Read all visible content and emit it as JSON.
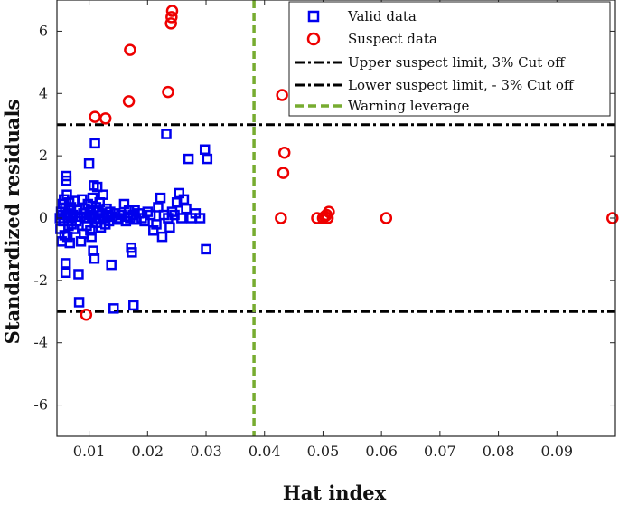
{
  "chart_data": {
    "type": "scatter",
    "xlabel": "Hat index",
    "ylabel": "Standardized residuals",
    "xlim": [
      0.0045,
      0.1
    ],
    "ylim": [
      -7,
      7
    ],
    "xticks": [
      0.01,
      0.02,
      0.03,
      0.04,
      0.05,
      0.06,
      0.07,
      0.08,
      0.09
    ],
    "xtick_labels": [
      "0.01",
      "0.02",
      "0.03",
      "0.04",
      "0.05",
      "0.06",
      "0.07",
      "0.08",
      "0.09"
    ],
    "yticks": [
      -6,
      -4,
      -2,
      0,
      2,
      4,
      6
    ],
    "ytick_labels": [
      "-6",
      "-4",
      "-2",
      "0",
      "2",
      "4",
      "6"
    ],
    "legend": {
      "position": "top-right",
      "entries": [
        {
          "label": "Valid data",
          "marker": "square",
          "color": "#0000ee"
        },
        {
          "label": "Suspect data",
          "marker": "circle",
          "color": "#ee0000"
        },
        {
          "label": "Upper suspect limit, 3% Cut off",
          "line": "dashdot",
          "color": "#000000"
        },
        {
          "label": "Lower suspect limit, - 3% Cut off",
          "line": "dashdot",
          "color": "#000000"
        },
        {
          "label": "Warning leverage",
          "line": "dashed",
          "color": "#77ac30"
        }
      ]
    },
    "reference_lines": [
      {
        "name": "Upper suspect limit, 3% Cut off",
        "orientation": "horizontal",
        "value": 3,
        "style": "dashdot",
        "color": "#000000"
      },
      {
        "name": "Lower suspect limit, - 3% Cut off",
        "orientation": "horizontal",
        "value": -3,
        "style": "dashdot",
        "color": "#000000"
      },
      {
        "name": "Warning leverage",
        "orientation": "vertical",
        "value": 0.0382,
        "style": "dashed",
        "color": "#77ac30"
      }
    ],
    "series": [
      {
        "name": "Valid data",
        "marker": "square",
        "color": "#0000ee",
        "points": [
          [
            0.005,
            0.0
          ],
          [
            0.0051,
            -0.35
          ],
          [
            0.0052,
            0.2
          ],
          [
            0.0053,
            -0.75
          ],
          [
            0.0054,
            0.1
          ],
          [
            0.0055,
            0.45
          ],
          [
            0.0056,
            -0.1
          ],
          [
            0.0057,
            0.6
          ],
          [
            0.0058,
            -0.55
          ],
          [
            0.0059,
            0.3
          ],
          [
            0.006,
            -1.75
          ],
          [
            0.006,
            -1.45
          ],
          [
            0.0061,
            1.2
          ],
          [
            0.0061,
            1.35
          ],
          [
            0.0062,
            0.75
          ],
          [
            0.0063,
            -0.6
          ],
          [
            0.0064,
            0.15
          ],
          [
            0.0065,
            -0.25
          ],
          [
            0.0066,
            0.5
          ],
          [
            0.0067,
            -0.8
          ],
          [
            0.0068,
            0.0
          ],
          [
            0.0069,
            0.35
          ],
          [
            0.007,
            -0.2
          ],
          [
            0.0072,
            0.1
          ],
          [
            0.0074,
            -0.35
          ],
          [
            0.0075,
            0.55
          ],
          [
            0.0077,
            0.05
          ],
          [
            0.0078,
            -0.1
          ],
          [
            0.008,
            0.25
          ],
          [
            0.0082,
            -1.8
          ],
          [
            0.0083,
            -2.7
          ],
          [
            0.0085,
            0.05
          ],
          [
            0.0086,
            -0.75
          ],
          [
            0.0088,
            0.6
          ],
          [
            0.009,
            0.15
          ],
          [
            0.0091,
            -0.5
          ],
          [
            0.0093,
            0.3
          ],
          [
            0.0095,
            0.0
          ],
          [
            0.0096,
            -0.25
          ],
          [
            0.0098,
            0.45
          ],
          [
            0.01,
            1.75
          ],
          [
            0.0101,
            0.1
          ],
          [
            0.0102,
            -0.4
          ],
          [
            0.0103,
            0.25
          ],
          [
            0.0104,
            -0.6
          ],
          [
            0.0105,
            0.05
          ],
          [
            0.0106,
            0.65
          ],
          [
            0.0107,
            -1.05
          ],
          [
            0.0108,
            1.05
          ],
          [
            0.0109,
            -1.3
          ],
          [
            0.011,
            2.4
          ],
          [
            0.0111,
            0.0
          ],
          [
            0.0112,
            0.35
          ],
          [
            0.0113,
            -0.15
          ],
          [
            0.0114,
            1.0
          ],
          [
            0.0115,
            0.2
          ],
          [
            0.0117,
            -0.05
          ],
          [
            0.0118,
            0.5
          ],
          [
            0.012,
            -0.3
          ],
          [
            0.0122,
            0.15
          ],
          [
            0.0124,
            0.75
          ],
          [
            0.0126,
            0.0
          ],
          [
            0.0128,
            -0.2
          ],
          [
            0.013,
            0.3
          ],
          [
            0.0132,
            0.1
          ],
          [
            0.0134,
            -0.1
          ],
          [
            0.0136,
            0.2
          ],
          [
            0.0138,
            -1.5
          ],
          [
            0.014,
            0.05
          ],
          [
            0.0142,
            -2.9
          ],
          [
            0.0145,
            0.15
          ],
          [
            0.0148,
            0.0
          ],
          [
            0.015,
            -0.05
          ],
          [
            0.0155,
            0.1
          ],
          [
            0.016,
            0.45
          ],
          [
            0.0163,
            -0.1
          ],
          [
            0.0166,
            0.05
          ],
          [
            0.0168,
            0.25
          ],
          [
            0.017,
            0.0
          ],
          [
            0.0172,
            -0.95
          ],
          [
            0.0173,
            -1.1
          ],
          [
            0.0175,
            0.1
          ],
          [
            0.0176,
            -2.8
          ],
          [
            0.0178,
            0.25
          ],
          [
            0.018,
            -0.05
          ],
          [
            0.0185,
            0.15
          ],
          [
            0.019,
            0.0
          ],
          [
            0.0195,
            -0.1
          ],
          [
            0.02,
            0.2
          ],
          [
            0.0205,
            0.1
          ],
          [
            0.021,
            -0.4
          ],
          [
            0.0215,
            -0.2
          ],
          [
            0.0218,
            0.35
          ],
          [
            0.0222,
            0.65
          ],
          [
            0.0225,
            -0.6
          ],
          [
            0.0228,
            0.1
          ],
          [
            0.0232,
            2.7
          ],
          [
            0.0235,
            0.0
          ],
          [
            0.0238,
            -0.3
          ],
          [
            0.0242,
            0.2
          ],
          [
            0.0246,
            0.1
          ],
          [
            0.025,
            0.5
          ],
          [
            0.0254,
            0.8
          ],
          [
            0.0258,
            0.0
          ],
          [
            0.0262,
            0.6
          ],
          [
            0.0266,
            0.3
          ],
          [
            0.027,
            1.9
          ],
          [
            0.0275,
            0.0
          ],
          [
            0.0282,
            0.15
          ],
          [
            0.029,
            0.0
          ],
          [
            0.0298,
            2.2
          ],
          [
            0.03,
            -1.0
          ],
          [
            0.0302,
            1.9
          ]
        ]
      },
      {
        "name": "Suspect data",
        "marker": "circle",
        "color": "#ee0000",
        "points": [
          [
            0.0095,
            -3.1
          ],
          [
            0.011,
            3.25
          ],
          [
            0.0128,
            3.2
          ],
          [
            0.0168,
            3.75
          ],
          [
            0.017,
            5.4
          ],
          [
            0.0235,
            4.05
          ],
          [
            0.024,
            6.25
          ],
          [
            0.0241,
            6.45
          ],
          [
            0.0242,
            6.65
          ],
          [
            0.0428,
            0.0
          ],
          [
            0.043,
            3.95
          ],
          [
            0.0432,
            1.45
          ],
          [
            0.0434,
            2.1
          ],
          [
            0.049,
            0.0
          ],
          [
            0.05,
            0.0
          ],
          [
            0.0503,
            0.05
          ],
          [
            0.0506,
            0.1
          ],
          [
            0.0508,
            0.0
          ],
          [
            0.051,
            0.2
          ],
          [
            0.0608,
            0.0
          ],
          [
            0.0995,
            0.0
          ]
        ]
      }
    ]
  }
}
